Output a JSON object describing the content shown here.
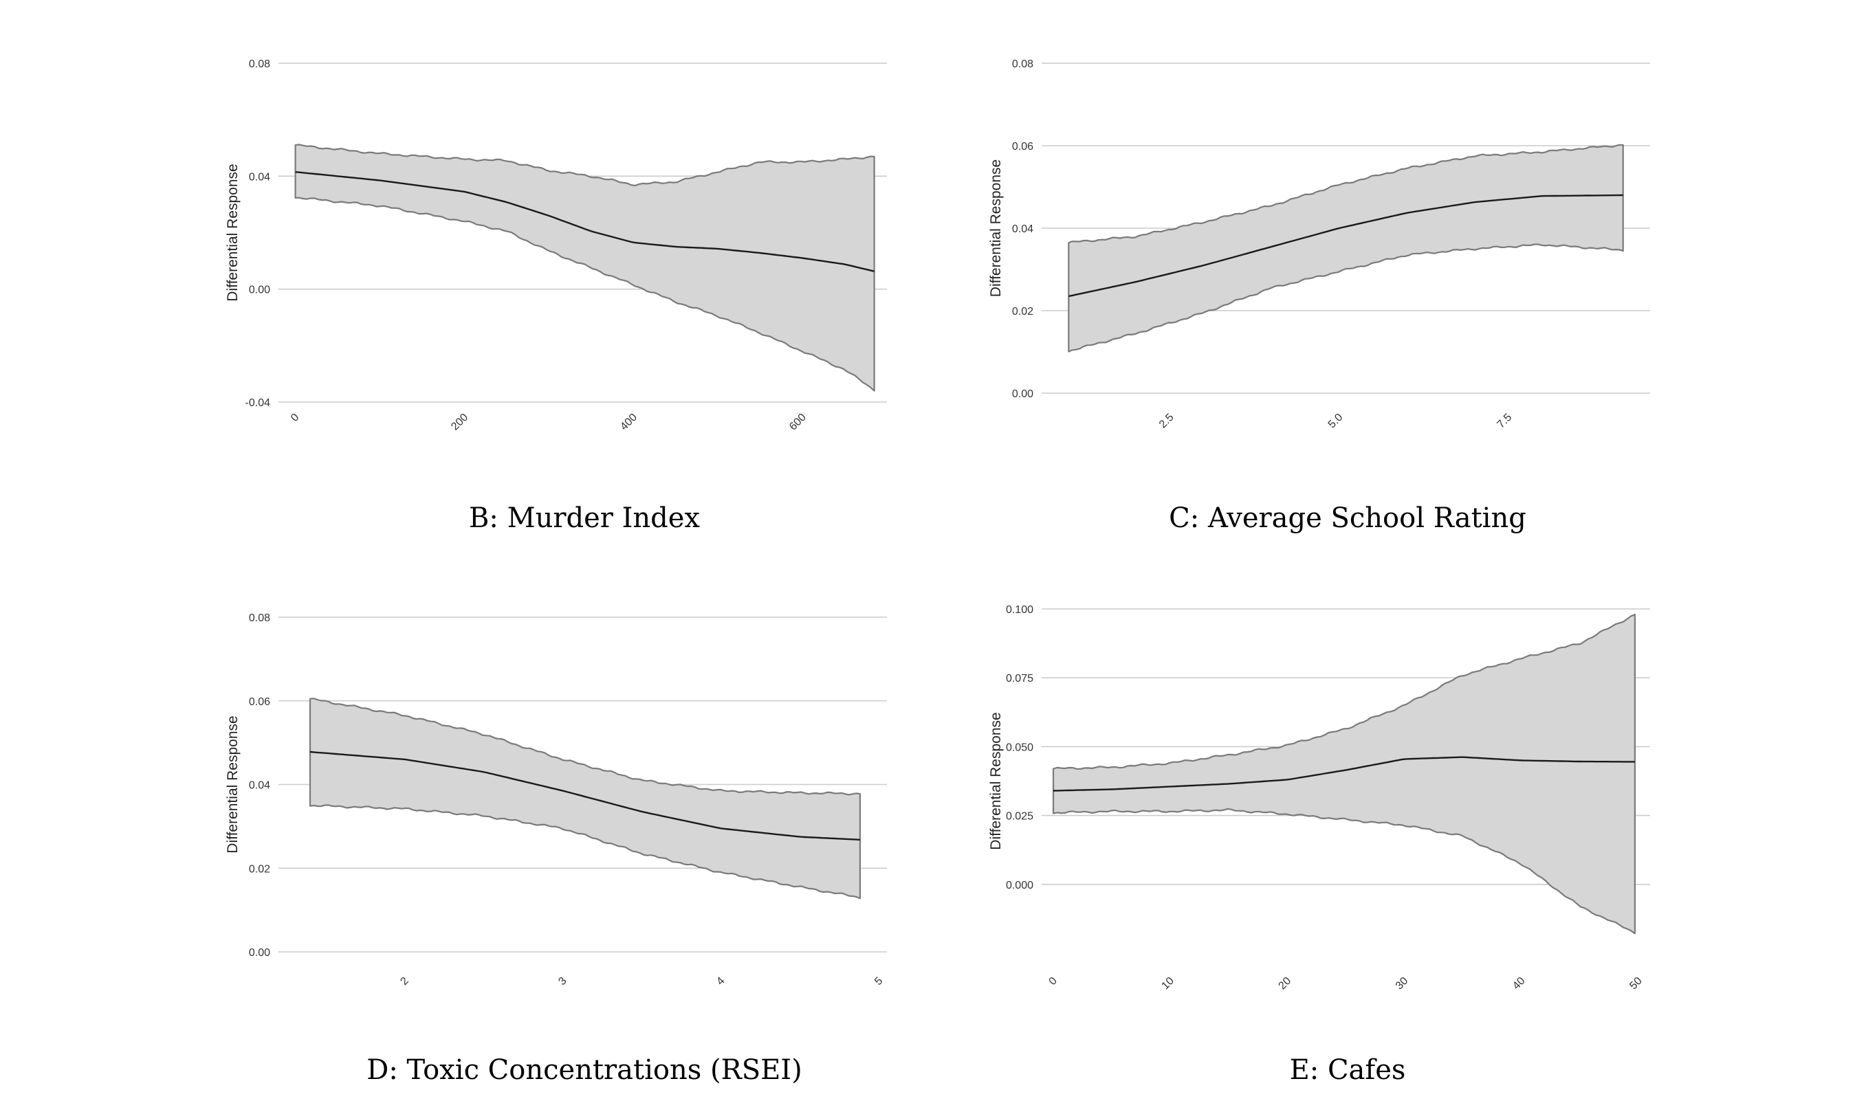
{
  "figure": {
    "panel_b_caption": "B: Murder Index",
    "panel_c_caption": "C: Average School Rating",
    "panel_d_caption": "D: Toxic Concentrations (RSEI)",
    "panel_e_caption": "E: Cafes"
  },
  "chart_data": [
    {
      "id": "B",
      "type": "area",
      "title": "B: Murder Index",
      "xlabel": "",
      "ylabel": "Differential Response",
      "xlim": [
        -20,
        700
      ],
      "ylim": [
        -0.04,
        0.08
      ],
      "x_ticks": [
        0,
        200,
        400,
        600
      ],
      "x_tick_labels": [
        "0",
        "200",
        "400",
        "600"
      ],
      "y_ticks": [
        -0.04,
        0.0,
        0.04,
        0.08
      ],
      "y_tick_labels": [
        "-0.04",
        "0.00",
        "0.04",
        "0.08"
      ],
      "grid": true,
      "series": [
        {
          "name": "estimate",
          "x": [
            0,
            100,
            200,
            250,
            300,
            350,
            400,
            450,
            500,
            550,
            600,
            650,
            685
          ],
          "y": [
            0.0415,
            0.0385,
            0.0345,
            0.0308,
            0.026,
            0.0205,
            0.0165,
            0.015,
            0.0143,
            0.0128,
            0.011,
            0.0088,
            0.0063
          ]
        },
        {
          "name": "upper",
          "x": [
            0,
            100,
            200,
            250,
            300,
            350,
            400,
            450,
            500,
            550,
            600,
            650,
            685
          ],
          "y": [
            0.051,
            0.048,
            0.046,
            0.0455,
            0.042,
            0.04,
            0.037,
            0.038,
            0.0415,
            0.045,
            0.045,
            0.046,
            0.047
          ]
        },
        {
          "name": "lower",
          "x": [
            0,
            100,
            200,
            250,
            300,
            350,
            400,
            450,
            500,
            550,
            600,
            650,
            685
          ],
          "y": [
            0.0325,
            0.0295,
            0.024,
            0.0205,
            0.0135,
            0.0075,
            0.0015,
            -0.0045,
            -0.0095,
            -0.0155,
            -0.022,
            -0.0285,
            -0.0357
          ]
        }
      ]
    },
    {
      "id": "C",
      "type": "area",
      "title": "C: Average School Rating",
      "xlabel": "",
      "ylabel": "Differential Response",
      "xlim": [
        0.6,
        9.6
      ],
      "ylim": [
        0.0,
        0.08
      ],
      "x_ticks": [
        2.5,
        5.0,
        7.5
      ],
      "x_tick_labels": [
        "2.5",
        "5.0",
        "7.5"
      ],
      "y_ticks": [
        0.0,
        0.02,
        0.04,
        0.06,
        0.08
      ],
      "y_tick_labels": [
        "0.00",
        "0.02",
        "0.04",
        "0.06",
        "0.08"
      ],
      "grid": true,
      "series": [
        {
          "name": "estimate",
          "x": [
            1.0,
            2.0,
            3.0,
            4.0,
            5.0,
            6.0,
            7.0,
            8.0,
            9.2
          ],
          "y": [
            0.0235,
            0.027,
            0.031,
            0.0355,
            0.04,
            0.0437,
            0.0463,
            0.0478,
            0.048
          ]
        },
        {
          "name": "upper",
          "x": [
            1.0,
            2.0,
            3.0,
            4.0,
            5.0,
            6.0,
            7.0,
            8.0,
            9.2
          ],
          "y": [
            0.0365,
            0.038,
            0.0415,
            0.0455,
            0.0505,
            0.0545,
            0.0575,
            0.0585,
            0.0602
          ]
        },
        {
          "name": "lower",
          "x": [
            1.0,
            2.0,
            3.0,
            4.0,
            5.0,
            6.0,
            7.0,
            8.0,
            9.2
          ],
          "y": [
            0.0102,
            0.0145,
            0.0195,
            0.0255,
            0.0295,
            0.0335,
            0.035,
            0.036,
            0.0347
          ]
        }
      ]
    },
    {
      "id": "D",
      "type": "area",
      "title": "D: Toxic Concentrations (RSEI)",
      "xlabel": "",
      "ylabel": "Differential Response",
      "xlim": [
        1.2,
        5.05
      ],
      "ylim": [
        0.0,
        0.08
      ],
      "x_ticks": [
        2,
        3,
        4,
        5
      ],
      "x_tick_labels": [
        "2",
        "3",
        "4",
        "5"
      ],
      "y_ticks": [
        0.0,
        0.02,
        0.04,
        0.06,
        0.08
      ],
      "y_tick_labels": [
        "0.00",
        "0.02",
        "0.04",
        "0.06",
        "0.08"
      ],
      "grid": true,
      "series": [
        {
          "name": "estimate",
          "x": [
            1.4,
            2.0,
            2.5,
            3.0,
            3.5,
            4.0,
            4.5,
            4.88
          ],
          "y": [
            0.0478,
            0.046,
            0.043,
            0.0385,
            0.0335,
            0.0295,
            0.0275,
            0.0268
          ]
        },
        {
          "name": "upper",
          "x": [
            1.4,
            2.0,
            2.5,
            3.0,
            3.5,
            4.0,
            4.5,
            4.88
          ],
          "y": [
            0.0605,
            0.0565,
            0.052,
            0.046,
            0.041,
            0.0385,
            0.038,
            0.0378
          ]
        },
        {
          "name": "lower",
          "x": [
            1.4,
            2.0,
            2.5,
            3.0,
            3.5,
            4.0,
            4.5,
            4.88
          ],
          "y": [
            0.035,
            0.0342,
            0.0325,
            0.0295,
            0.0235,
            0.019,
            0.0155,
            0.013
          ]
        }
      ]
    },
    {
      "id": "E",
      "type": "area",
      "title": "E: Cafes",
      "xlabel": "",
      "ylabel": "Differential Response",
      "xlim": [
        -1,
        51
      ],
      "ylim": [
        -0.025,
        0.1
      ],
      "x_ticks": [
        0,
        10,
        20,
        30,
        40,
        50
      ],
      "x_tick_labels": [
        "0",
        "10",
        "20",
        "30",
        "40",
        "50"
      ],
      "y_ticks": [
        0.0,
        0.025,
        0.05,
        0.075,
        0.1
      ],
      "y_tick_labels": [
        "0.000",
        "0.025",
        "0.050",
        "0.075",
        "0.100"
      ],
      "grid": true,
      "series": [
        {
          "name": "estimate",
          "x": [
            0,
            5,
            10,
            15,
            20,
            25,
            30,
            35,
            40,
            45,
            49.7
          ],
          "y": [
            0.034,
            0.0345,
            0.0355,
            0.0365,
            0.038,
            0.0415,
            0.0455,
            0.0462,
            0.045,
            0.0446,
            0.0445
          ]
        },
        {
          "name": "upper",
          "x": [
            0,
            5,
            10,
            15,
            20,
            25,
            30,
            35,
            40,
            45,
            49.7
          ],
          "y": [
            0.042,
            0.0425,
            0.044,
            0.047,
            0.0505,
            0.0565,
            0.065,
            0.076,
            0.082,
            0.0875,
            0.098
          ]
        },
        {
          "name": "lower",
          "x": [
            0,
            5,
            10,
            15,
            20,
            25,
            30,
            35,
            40,
            45,
            49.7
          ],
          "y": [
            0.026,
            0.0265,
            0.0265,
            0.027,
            0.0255,
            0.0235,
            0.0215,
            0.0175,
            0.0075,
            -0.008,
            -0.0175
          ]
        }
      ]
    }
  ]
}
